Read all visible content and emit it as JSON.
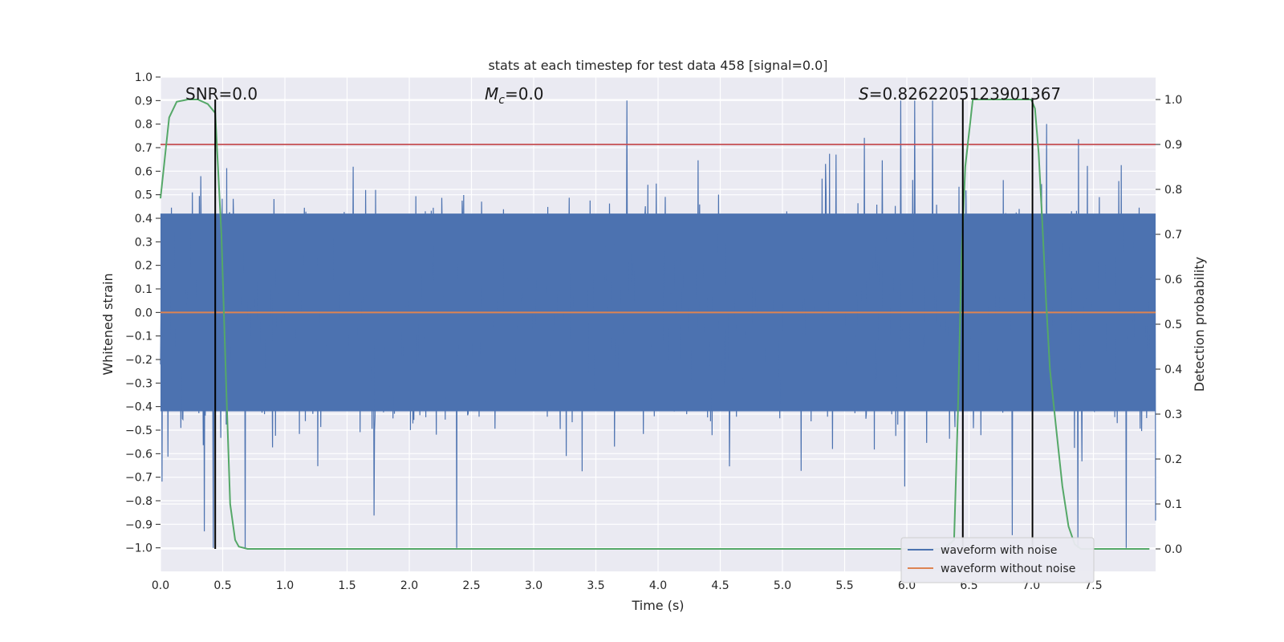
{
  "chart_data": {
    "type": "line",
    "title": "stats at each timestep for test data 458 [signal=0.0]",
    "xlabel": "Time (s)",
    "ylabel": "Whitened strain",
    "y2label": "Detection probability",
    "xlim": [
      0.0,
      8.0
    ],
    "ylim": [
      -1.1,
      1.0
    ],
    "y2lim": [
      -0.05,
      1.05
    ],
    "x_ticks": [
      0.0,
      0.5,
      1.0,
      1.5,
      2.0,
      2.5,
      3.0,
      3.5,
      4.0,
      4.5,
      5.0,
      5.5,
      6.0,
      6.5,
      7.0,
      7.5
    ],
    "x_tick_labels": [
      "0.0",
      "0.5",
      "1.0",
      "1.5",
      "2.0",
      "2.5",
      "3.0",
      "3.5",
      "4.0",
      "4.5",
      "5.0",
      "5.5",
      "6.0",
      "6.5",
      "7.0",
      "7.5"
    ],
    "y_ticks": [
      1.0,
      0.9,
      0.8,
      0.7,
      0.6,
      0.5,
      0.4,
      0.3,
      0.2,
      0.1,
      0.0,
      -0.1,
      -0.2,
      -0.3,
      -0.4,
      -0.5,
      -0.6,
      -0.7,
      -0.8,
      -0.9,
      -1.0
    ],
    "y_tick_labels": [
      "1.0",
      "0.9",
      "0.8",
      "0.7",
      "0.6",
      "0.5",
      "0.4",
      "0.3",
      "0.2",
      "0.1",
      "0.0",
      "−0.1",
      "−0.2",
      "−0.3",
      "−0.4",
      "−0.5",
      "−0.6",
      "−0.7",
      "−0.8",
      "−0.9",
      "−1.0"
    ],
    "y2_ticks": [
      1.0,
      0.9,
      0.8,
      0.7,
      0.6,
      0.5,
      0.4,
      0.3,
      0.2,
      0.1,
      0.0
    ],
    "y2_tick_labels": [
      "1.0",
      "0.9",
      "0.8",
      "0.7",
      "0.6",
      "0.5",
      "0.4",
      "0.3",
      "0.2",
      "0.1",
      "0.0"
    ],
    "series": [
      {
        "name": "waveform with noise",
        "axis": "left",
        "color": "#4c72b0",
        "description": "dense whitened noise, roughly between -1.0 and 0.9",
        "n_samples": 2000,
        "env_pos": 0.42,
        "env_neg": -0.42,
        "max": 0.9,
        "min": -1.0
      },
      {
        "name": "waveform without noise",
        "axis": "left",
        "color": "#dd8452",
        "x": [
          0.0,
          8.0
        ],
        "values": [
          0.0,
          0.0
        ]
      },
      {
        "name": "detection probability",
        "axis": "right",
        "color": "#55a868",
        "x": [
          0.0,
          0.07,
          0.13,
          0.22,
          0.3,
          0.38,
          0.44,
          0.49,
          0.53,
          0.56,
          0.58,
          0.6,
          0.63,
          0.7,
          1.0,
          2.0,
          3.0,
          4.0,
          5.0,
          6.0,
          6.3,
          6.38,
          6.41,
          6.44,
          6.47,
          6.53,
          6.6,
          6.8,
          7.0,
          7.03,
          7.06,
          7.09,
          7.12,
          7.15,
          7.2,
          7.25,
          7.3,
          7.35,
          7.4,
          7.5,
          7.6,
          7.7,
          7.95
        ],
        "values": [
          0.78,
          0.96,
          0.995,
          1.0,
          1.0,
          0.99,
          0.97,
          0.7,
          0.35,
          0.1,
          0.06,
          0.02,
          0.005,
          0.0,
          0.0,
          0.0,
          0.0,
          0.0,
          0.0,
          0.0,
          0.0,
          0.02,
          0.3,
          0.65,
          0.85,
          1.0,
          1.0,
          1.0,
          1.0,
          0.98,
          0.88,
          0.72,
          0.55,
          0.4,
          0.27,
          0.14,
          0.05,
          0.01,
          0.0,
          0.0,
          0.0,
          0.0,
          0.0
        ]
      }
    ],
    "threshold": {
      "axis": "right",
      "value": 0.9,
      "color": "#c44e52"
    },
    "vertical_lines": [
      0.44,
      6.45,
      7.01
    ],
    "annotations": [
      {
        "text": "SNR=0.0",
        "x": 0.2,
        "y": 0.9
      },
      {
        "text": "=0.0",
        "symbol": "M",
        "subscript": "c",
        "x": 2.6,
        "y": 0.9
      },
      {
        "text": "=0.8262205123901367",
        "symbol": "S",
        "x": 5.6,
        "y": 0.9
      }
    ],
    "legend": {
      "position": "lower-right",
      "entries": [
        "waveform with noise",
        "waveform without noise"
      ]
    }
  }
}
